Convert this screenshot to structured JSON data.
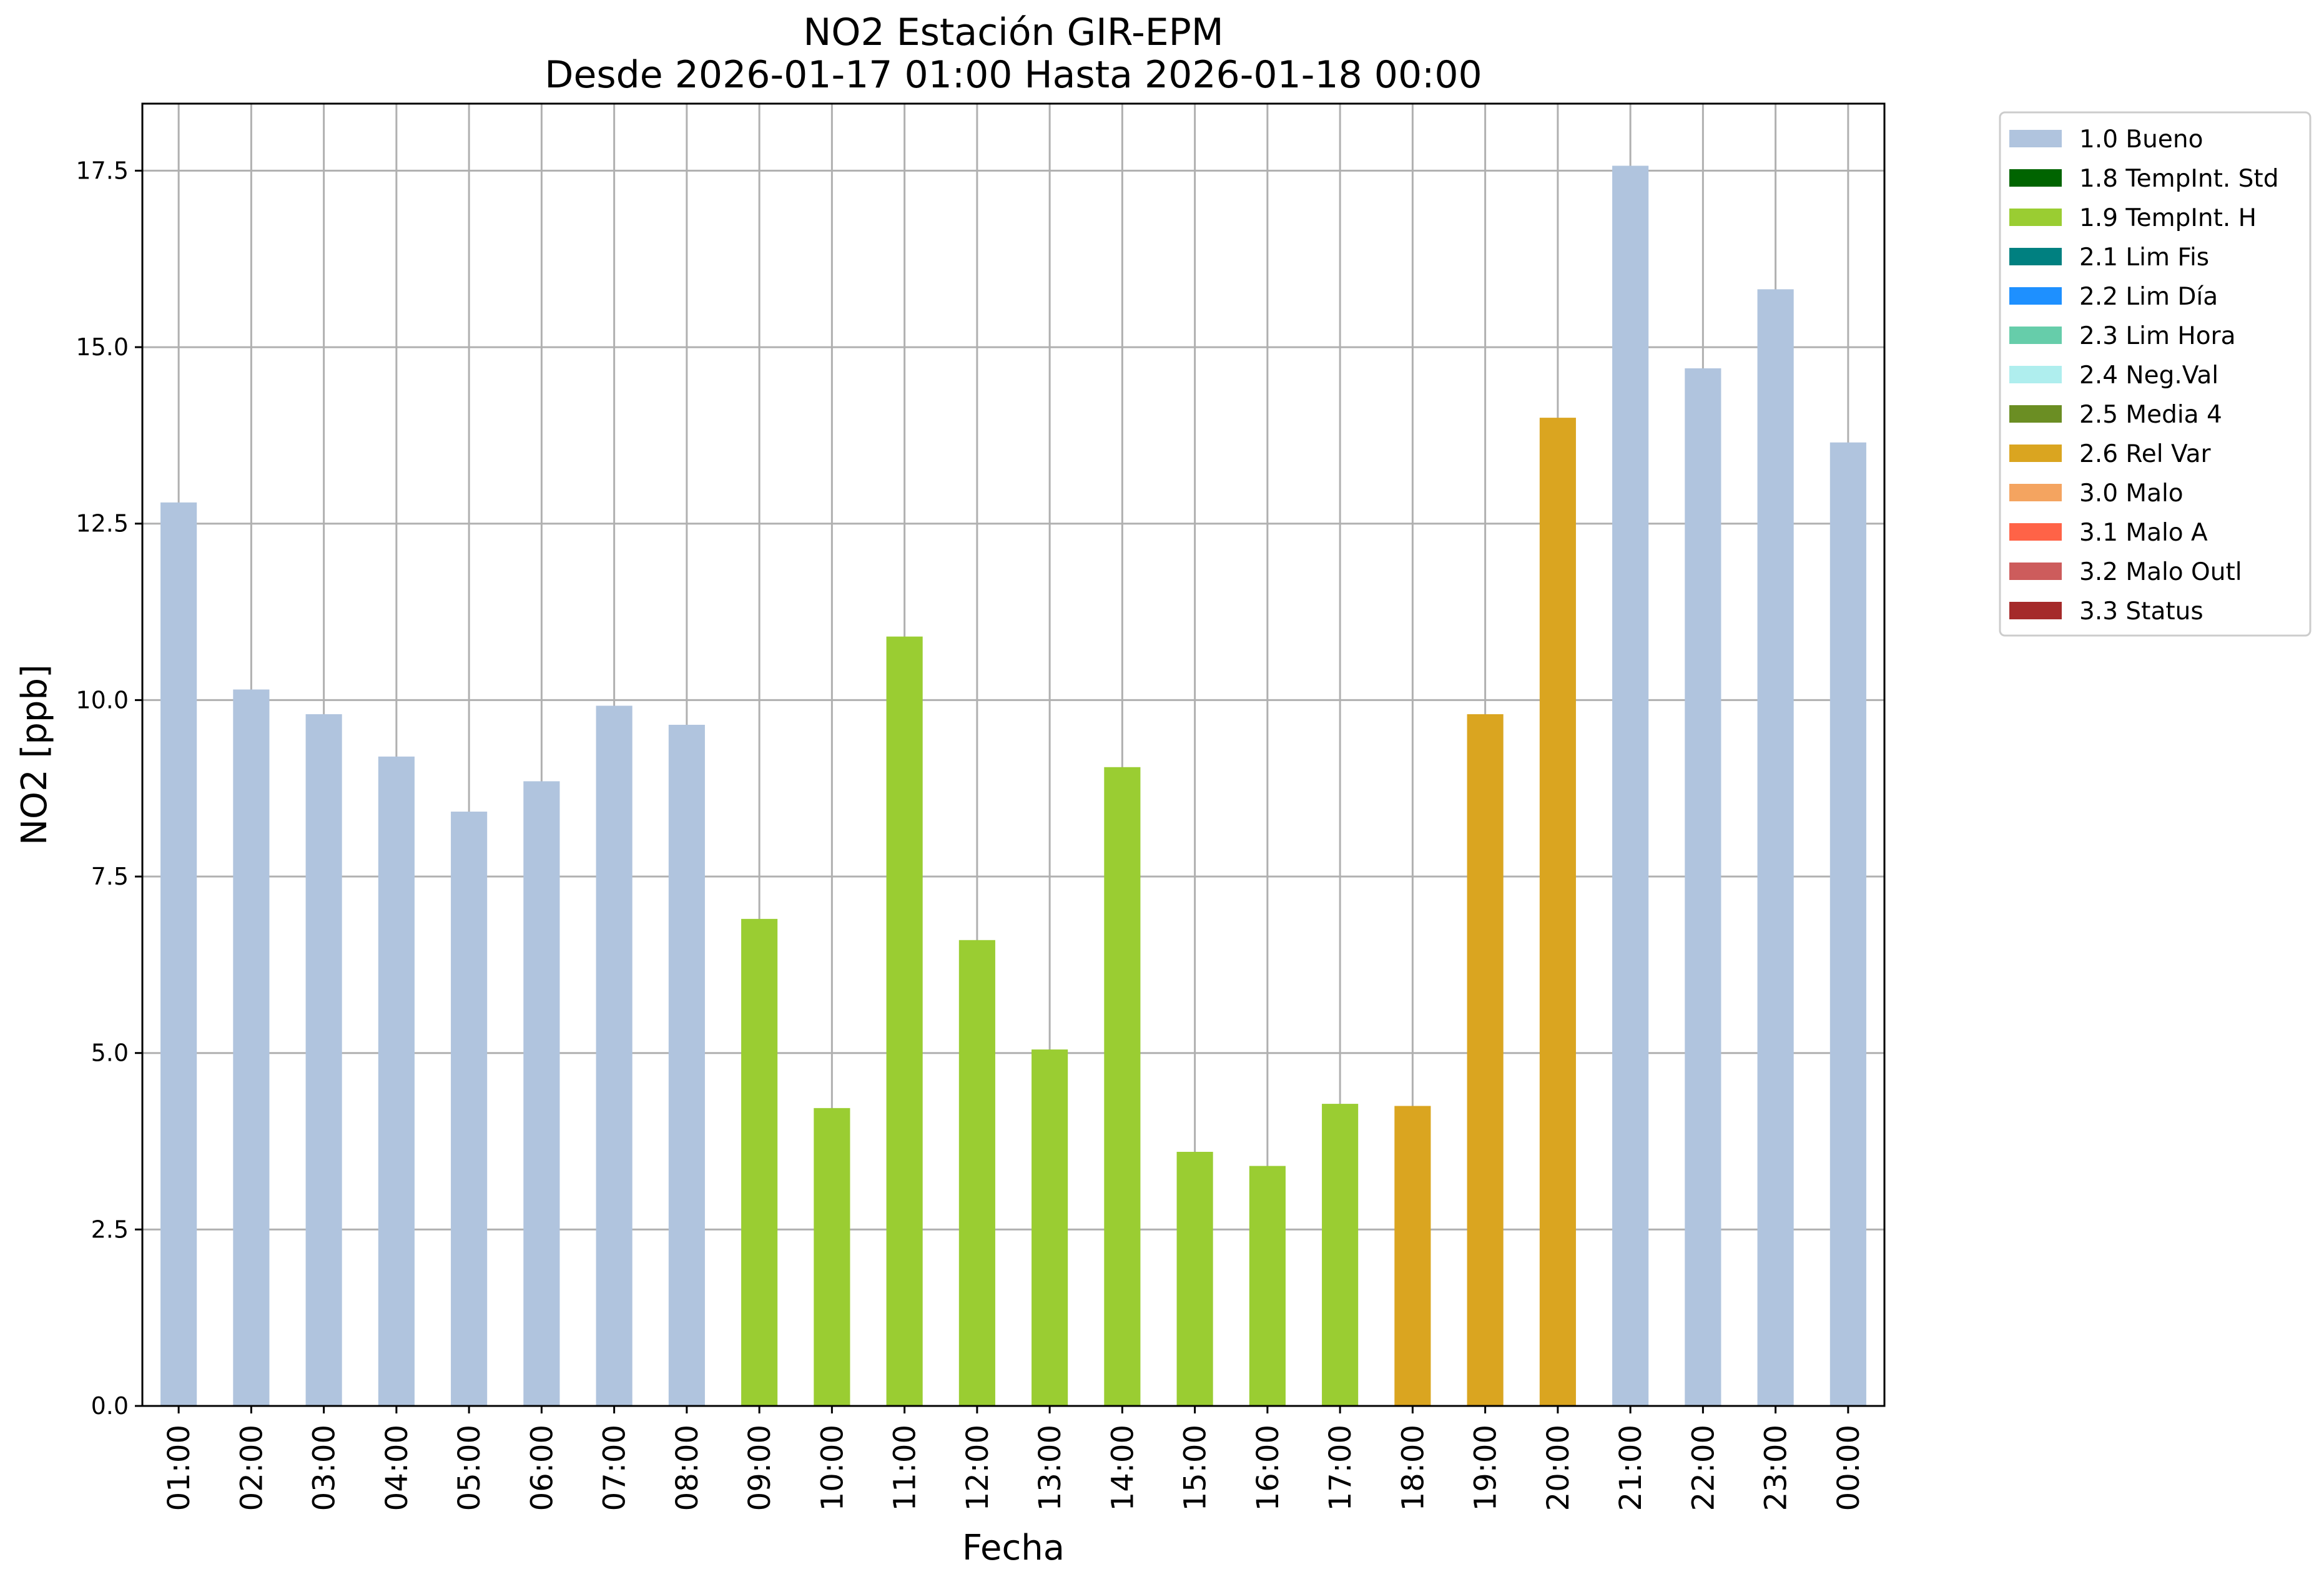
{
  "chart_data": {
    "type": "bar",
    "title": "NO2 Estación GIR-EPM",
    "subtitle": "Desde 2026-01-17 01:00 Hasta 2026-01-18 00:00",
    "xlabel": "Fecha",
    "ylabel": "NO2 [ppb]",
    "ylim": [
      0,
      18.45
    ],
    "yticks": [
      "0.0",
      "2.5",
      "5.0",
      "7.5",
      "10.0",
      "12.5",
      "15.0",
      "17.5"
    ],
    "grid": true,
    "legend_position": "outside-top-right",
    "categories": [
      "01:00",
      "02:00",
      "03:00",
      "04:00",
      "05:00",
      "06:00",
      "07:00",
      "08:00",
      "09:00",
      "10:00",
      "11:00",
      "12:00",
      "13:00",
      "14:00",
      "15:00",
      "16:00",
      "17:00",
      "18:00",
      "19:00",
      "20:00",
      "21:00",
      "22:00",
      "23:00",
      "00:00"
    ],
    "values": [
      12.8,
      10.15,
      9.8,
      9.2,
      8.42,
      8.85,
      9.92,
      9.65,
      6.9,
      4.22,
      10.9,
      6.6,
      5.05,
      9.05,
      3.6,
      3.4,
      4.28,
      4.25,
      9.8,
      14.0,
      17.57,
      14.7,
      15.82,
      13.65
    ],
    "flags": [
      "1.0 Bueno",
      "1.0 Bueno",
      "1.0 Bueno",
      "1.0 Bueno",
      "1.0 Bueno",
      "1.0 Bueno",
      "1.0 Bueno",
      "1.0 Bueno",
      "1.9 TempInt. H",
      "1.9 TempInt. H",
      "1.9 TempInt. H",
      "1.9 TempInt. H",
      "1.9 TempInt. H",
      "1.9 TempInt. H",
      "1.9 TempInt. H",
      "1.9 TempInt. H",
      "1.9 TempInt. H",
      "2.6 Rel Var",
      "2.6 Rel Var",
      "2.6 Rel Var",
      "1.0 Bueno",
      "1.0 Bueno",
      "1.0 Bueno",
      "1.0 Bueno"
    ],
    "legend": [
      {
        "label": "1.0 Bueno",
        "color": "#b0c4de"
      },
      {
        "label": "1.8 TempInt. Std",
        "color": "#006400"
      },
      {
        "label": "1.9 TempInt. H",
        "color": "#9acd32"
      },
      {
        "label": "2.1 Lim Fis",
        "color": "#008080"
      },
      {
        "label": "2.2 Lim Día",
        "color": "#1e90ff"
      },
      {
        "label": "2.3 Lim Hora",
        "color": "#66cdaa"
      },
      {
        "label": "2.4 Neg.Val",
        "color": "#afeeee"
      },
      {
        "label": "2.5 Media 4",
        "color": "#6b8e23"
      },
      {
        "label": "2.6 Rel Var",
        "color": "#daa520"
      },
      {
        "label": "3.0 Malo",
        "color": "#f4a460"
      },
      {
        "label": "3.1 Malo A",
        "color": "#ff6347"
      },
      {
        "label": "3.2 Malo Outl",
        "color": "#cd5c5c"
      },
      {
        "label": "3.3 Status",
        "color": "#a52a2a"
      }
    ]
  }
}
